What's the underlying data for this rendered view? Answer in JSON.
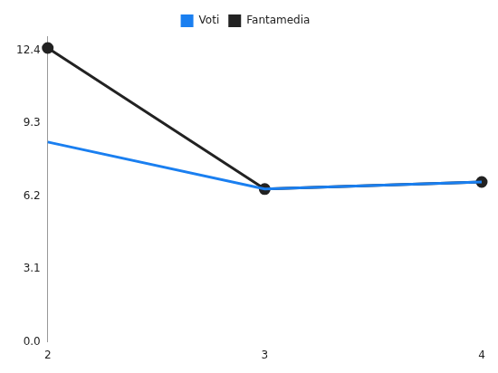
{
  "chart_data": {
    "type": "line",
    "categories": [
      "2",
      "3",
      "4"
    ],
    "series": [
      {
        "name": "Voti",
        "color": "#1a7ff0",
        "values": [
          8.5,
          6.5,
          6.8
        ],
        "marker": "none"
      },
      {
        "name": "Fantamedia",
        "color": "#222222",
        "values": [
          12.5,
          6.5,
          6.8
        ],
        "marker": "circle"
      }
    ],
    "ylim": [
      0,
      13
    ],
    "yticks": [
      {
        "value": 0,
        "label": "0.0"
      },
      3.1,
      6.2,
      9.3,
      12.4
    ],
    "grid": false,
    "legend": "top"
  }
}
